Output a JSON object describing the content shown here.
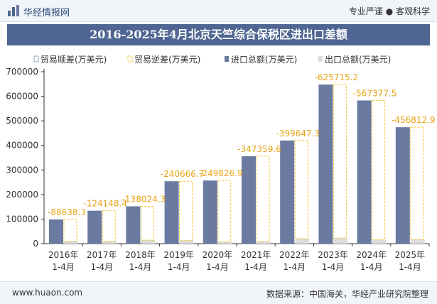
{
  "header": {
    "brand": "华经情报网",
    "tagline": "专业严谨 ● 客观科学"
  },
  "title": "2016-2025年4月北京天竺综合保税区进出口差额",
  "legend": {
    "surplus": "贸易顺差(万美元)",
    "deficit": "贸易逆差(万美元)",
    "imports": "进口总额(万美元)",
    "exports": "出口总额(万美元)"
  },
  "footer": {
    "site": "www.huaon.com",
    "source": "数据来源：中国海关，华经产业研究院整理"
  },
  "colors": {
    "import_bar": "#6b7aa1",
    "export_bar": "#dcdcdc",
    "deficit_border": "#f2c433",
    "deficit_label": "#e8a317",
    "title_bg": "#4f6592"
  },
  "chart_data": {
    "type": "bar",
    "categories": [
      "2016年\n1-4月",
      "2017年\n1-4月",
      "2018年\n1-4月",
      "2019年\n1-4月",
      "2020年\n1-4月",
      "2021年\n1-4月",
      "2022年\n1-4月",
      "2023年\n1-4月",
      "2024年\n1-4月",
      "2025年\n1-4月"
    ],
    "series": [
      {
        "name": "贸易顺差(万美元)",
        "values": [
          0,
          0,
          0,
          0,
          0,
          0,
          0,
          0,
          0,
          0
        ]
      },
      {
        "name": "贸易逆差(万美元)",
        "values": [
          -88638.3,
          -124148.4,
          -138024.3,
          -240666.7,
          -249826.9,
          -347359.6,
          -399647.3,
          -625715.2,
          -567377.5,
          -456812.9
        ]
      },
      {
        "name": "进口总额(万美元)",
        "values": [
          98500,
          134000,
          152000,
          254000,
          257000,
          356000,
          420000,
          648000,
          583000,
          474000
        ]
      },
      {
        "name": "出口总额(万美元)",
        "values": [
          9900,
          9900,
          14000,
          13300,
          7200,
          8600,
          20400,
          22300,
          15600,
          17200
        ]
      }
    ],
    "data_labels": [
      "-88638.3",
      "-124148.4",
      "-138024.3",
      "-240666.7",
      "-249826.9",
      "-347359.6",
      "-399647.3",
      "-625715.2",
      "-567377.5",
      "-456812.9"
    ],
    "yticks": [
      "0",
      "100000",
      "200000",
      "300000",
      "400000",
      "500000",
      "600000",
      "700000"
    ],
    "ylim": [
      0,
      700000
    ],
    "legend_position": "top-left",
    "grid": false
  }
}
